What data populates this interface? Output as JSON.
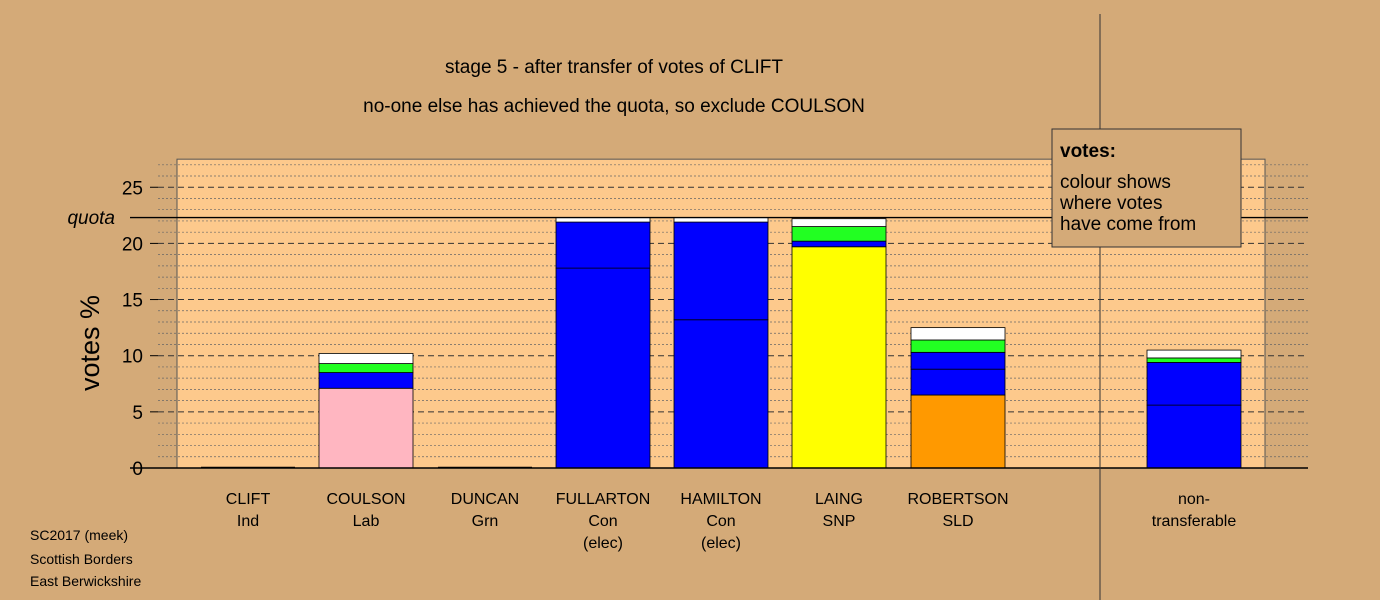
{
  "chart_data": {
    "type": "bar",
    "stacked": true,
    "title": "stage 5 - after transfer of votes of CLIFT",
    "subtitle": "no-one else has achieved the quota, so exclude COULSON",
    "ylabel": "votes %",
    "ylim": [
      0,
      27.5
    ],
    "yticks": [
      0,
      5,
      10,
      15,
      20,
      25
    ],
    "quota": 22.3,
    "quota_label": "quota",
    "grid": true,
    "categories": [
      {
        "name": "CLIFT",
        "party": "Ind",
        "note": ""
      },
      {
        "name": "COULSON",
        "party": "Lab",
        "note": ""
      },
      {
        "name": "DUNCAN",
        "party": "Grn",
        "note": ""
      },
      {
        "name": "FULLARTON",
        "party": "Con",
        "note": "(elec)"
      },
      {
        "name": "HAMILTON",
        "party": "Con",
        "note": "(elec)"
      },
      {
        "name": "LAING",
        "party": "SNP",
        "note": ""
      },
      {
        "name": "ROBERTSON",
        "party": "SLD",
        "note": ""
      },
      {
        "name": "non-",
        "party": "transferable",
        "note": ""
      }
    ],
    "stacks": [
      [],
      [
        {
          "value": 7.1,
          "color": "#ffb6c1"
        },
        {
          "value": 1.4,
          "color": "#0000ff"
        },
        {
          "value": 0.8,
          "color": "#22ff22"
        },
        {
          "value": 0.9,
          "color": "#ffffff"
        }
      ],
      [],
      [
        {
          "value": 17.8,
          "color": "#0000ff"
        },
        {
          "value": 4.1,
          "color": "#0000ff"
        },
        {
          "value": 0.4,
          "color": "#ffffff"
        }
      ],
      [
        {
          "value": 13.2,
          "color": "#0000ff"
        },
        {
          "value": 8.7,
          "color": "#0000ff"
        },
        {
          "value": 0.4,
          "color": "#ffffff"
        }
      ],
      [
        {
          "value": 19.7,
          "color": "#ffff00"
        },
        {
          "value": 0.5,
          "color": "#0000ff"
        },
        {
          "value": 1.3,
          "color": "#22ff22"
        },
        {
          "value": 0.7,
          "color": "#ffffff"
        }
      ],
      [
        {
          "value": 6.5,
          "color": "#ff9900"
        },
        {
          "value": 2.3,
          "color": "#0000ff"
        },
        {
          "value": 1.5,
          "color": "#0000ff"
        },
        {
          "value": 1.1,
          "color": "#22ff22"
        },
        {
          "value": 1.1,
          "color": "#ffffff"
        }
      ],
      [
        {
          "value": 5.6,
          "color": "#0000ff"
        },
        {
          "value": 3.8,
          "color": "#0000ff"
        },
        {
          "value": 0.4,
          "color": "#22ff22"
        },
        {
          "value": 0.7,
          "color": "#ffffff"
        }
      ]
    ],
    "legend": {
      "title": "votes:",
      "lines": [
        "colour shows",
        "where votes",
        "have come from"
      ],
      "placement": "top-right"
    }
  },
  "footer": [
    "SC2017 (meek)",
    "Scottish Borders",
    "East Berwickshire"
  ],
  "colors": {
    "background": "#d4aa78",
    "plot_area": "#fdc98c",
    "legend_box": "#d4aa78"
  }
}
